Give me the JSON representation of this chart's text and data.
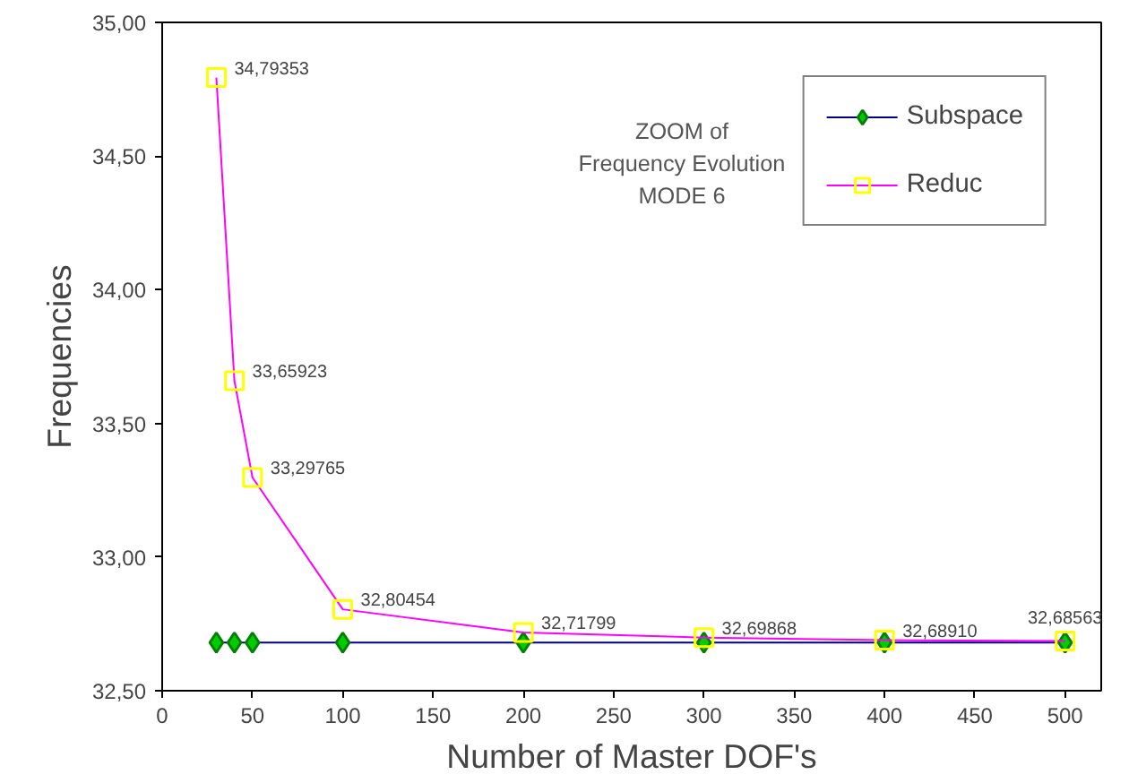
{
  "chart_data": {
    "type": "line",
    "title": "ZOOM of\nFrequency Evolution\nMODE 6",
    "xlabel": "Number of Master DOF's",
    "ylabel": "Frequencies",
    "x": [
      30,
      40,
      50,
      100,
      200,
      300,
      400,
      500
    ],
    "series": [
      {
        "name": "Subspace",
        "color": "#000080",
        "marker": "diamond",
        "values": [
          32.68,
          32.68,
          32.68,
          32.68,
          32.68,
          32.68,
          32.68,
          32.68
        ]
      },
      {
        "name": "Reduc",
        "color": "#ff00ff",
        "marker": "square",
        "values": [
          34.79353,
          33.65923,
          33.29765,
          32.80454,
          32.71799,
          32.69868,
          32.6891,
          32.68563
        ],
        "value_labels": [
          "34,79353",
          "33,65923",
          "33,29765",
          "32,80454",
          "32,71799",
          "32,69868",
          "32,68910",
          "32,68563"
        ]
      }
    ],
    "xlim": [
      0,
      520
    ],
    "xticks": [
      0,
      50,
      100,
      150,
      200,
      250,
      300,
      350,
      400,
      450,
      500
    ],
    "ylim": [
      32.5,
      35
    ],
    "yticks": [
      {
        "value": 32.5,
        "label": "32,50"
      },
      {
        "value": 33,
        "label": "33,00"
      },
      {
        "value": 33.5,
        "label": "33,50"
      },
      {
        "value": 34,
        "label": "34,00"
      },
      {
        "value": 34.5,
        "label": "34,50"
      },
      {
        "value": 35,
        "label": "35,00"
      }
    ],
    "grid": false,
    "legend": "top right"
  }
}
